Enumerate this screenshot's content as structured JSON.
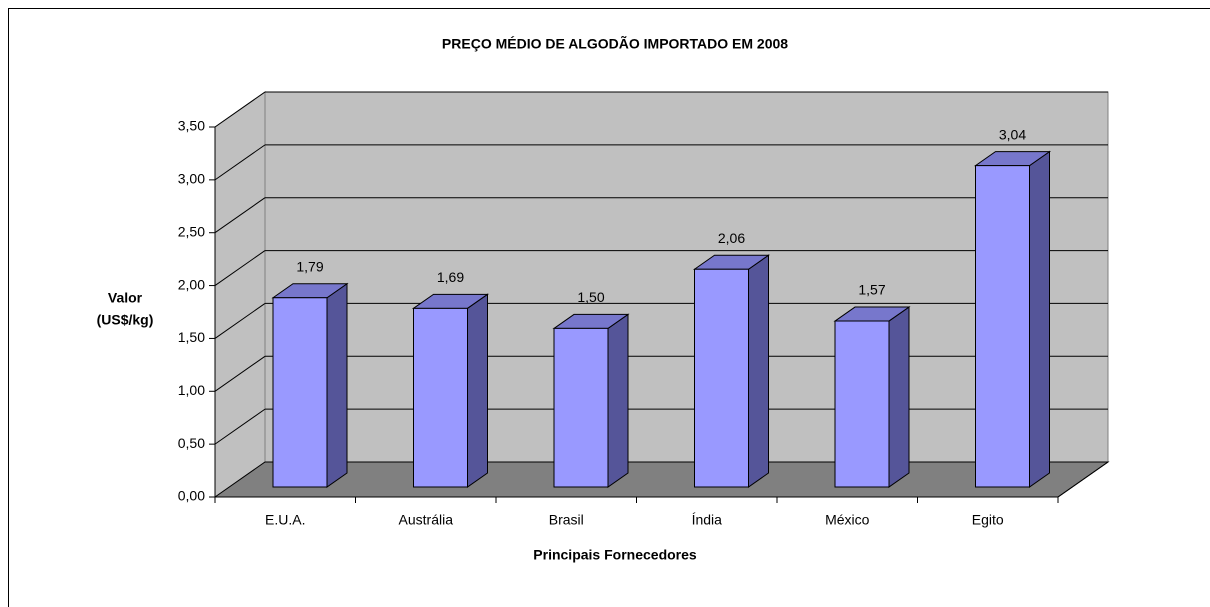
{
  "chart_data": {
    "type": "bar3d",
    "title": "PREÇO MÉDIO DE ALGODÃO IMPORTADO EM 2008",
    "x_label": "Principais Fornecedores",
    "y_label": [
      "Valor",
      "(US$/kg)"
    ],
    "categories": [
      "E.U.A.",
      "Austrália",
      "Brasil",
      "Índia",
      "México",
      "Egito"
    ],
    "values": [
      1.79,
      1.69,
      1.5,
      2.06,
      1.57,
      3.04
    ],
    "value_labels": [
      "1,79",
      "1,69",
      "1,50",
      "2,06",
      "1,57",
      "3,04"
    ],
    "color": "#9999ff",
    "ylim": [
      0,
      3.5
    ],
    "yticks": [
      {
        "value": 0,
        "label": "0,00"
      },
      {
        "value": 0.5,
        "label": "0,50"
      },
      {
        "value": 1,
        "label": "1,00"
      },
      {
        "value": 1.5,
        "label": "1,50"
      },
      {
        "value": 2,
        "label": "2,00"
      },
      {
        "value": 2.5,
        "label": "2,50"
      },
      {
        "value": 3,
        "label": "3,00"
      },
      {
        "value": 3.5,
        "label": "3,50"
      }
    ],
    "grid": true
  }
}
